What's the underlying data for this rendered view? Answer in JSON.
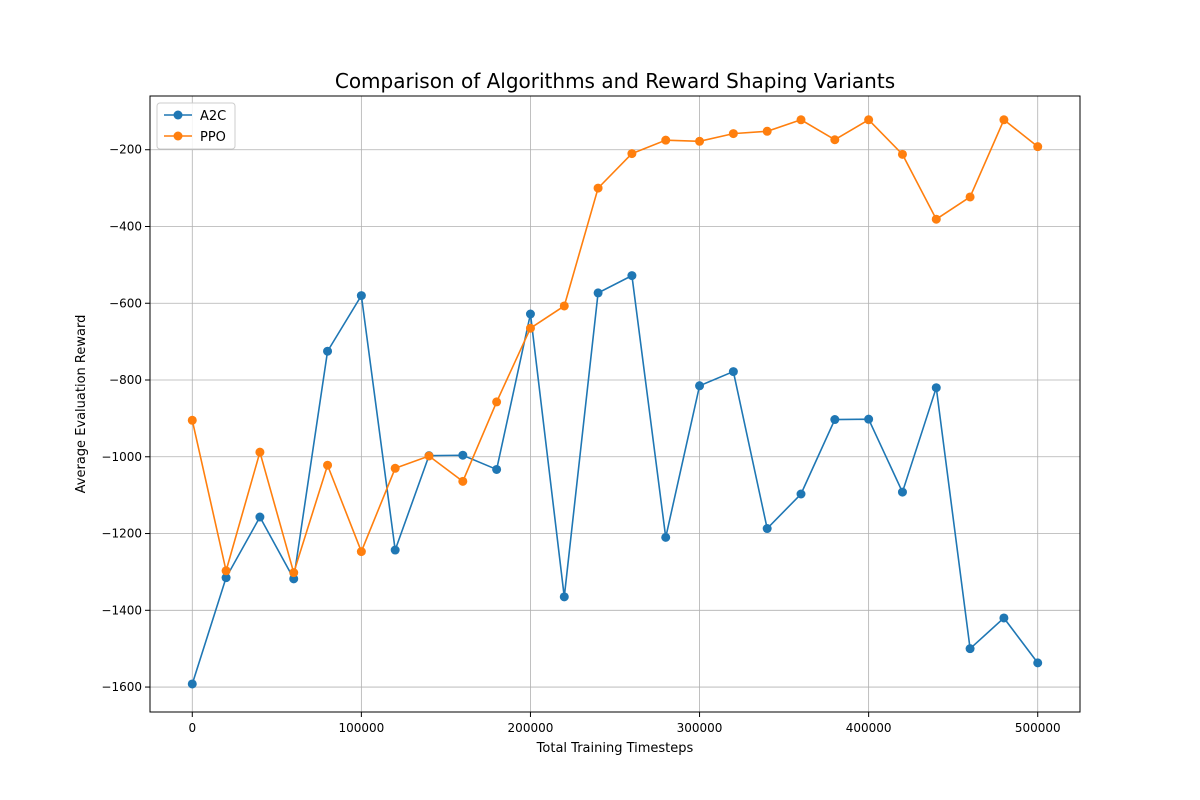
{
  "chart_data": {
    "type": "line",
    "title": "Comparison of Algorithms and Reward Shaping Variants",
    "xlabel": "Total Training Timesteps",
    "ylabel": "Average Evaluation Reward",
    "xlim": [
      -25000,
      525000
    ],
    "ylim": [
      -1665,
      -60
    ],
    "xticks": [
      0,
      100000,
      200000,
      300000,
      400000,
      500000
    ],
    "xtick_labels": [
      "0",
      "100000",
      "200000",
      "300000",
      "400000",
      "500000"
    ],
    "yticks": [
      -1600,
      -1400,
      -1200,
      -1000,
      -800,
      -600,
      -400,
      -200
    ],
    "ytick_labels": [
      "−1600",
      "−1400",
      "−1200",
      "−1000",
      "−800",
      "−600",
      "−400",
      "−200"
    ],
    "grid": true,
    "legend_position": "top-left",
    "x": [
      0,
      20000,
      40000,
      60000,
      80000,
      100000,
      120000,
      140000,
      160000,
      180000,
      200000,
      220000,
      240000,
      260000,
      280000,
      300000,
      320000,
      340000,
      360000,
      380000,
      400000,
      420000,
      440000,
      460000,
      480000,
      500000
    ],
    "series": [
      {
        "name": "A2C",
        "color": "#1f77b4",
        "values": [
          -1592,
          -1315,
          -1157,
          -1318,
          -725,
          -580,
          -1243,
          -997,
          -996,
          -1033,
          -628,
          -1365,
          -573,
          -528,
          -1210,
          -815,
          -778,
          -1187,
          -1097,
          -903,
          -902,
          -1092,
          -820,
          -1500,
          -1420,
          -1537
        ]
      },
      {
        "name": "PPO",
        "color": "#ff7f0e",
        "values": [
          -905,
          -1297,
          -988,
          -1302,
          -1022,
          -1247,
          -1030,
          -998,
          -1064,
          -857,
          -665,
          -607,
          -300,
          -210,
          -175,
          -178,
          -158,
          -152,
          -122,
          -174,
          -122,
          -212,
          -381,
          -323,
          -122,
          -192
        ]
      }
    ]
  }
}
